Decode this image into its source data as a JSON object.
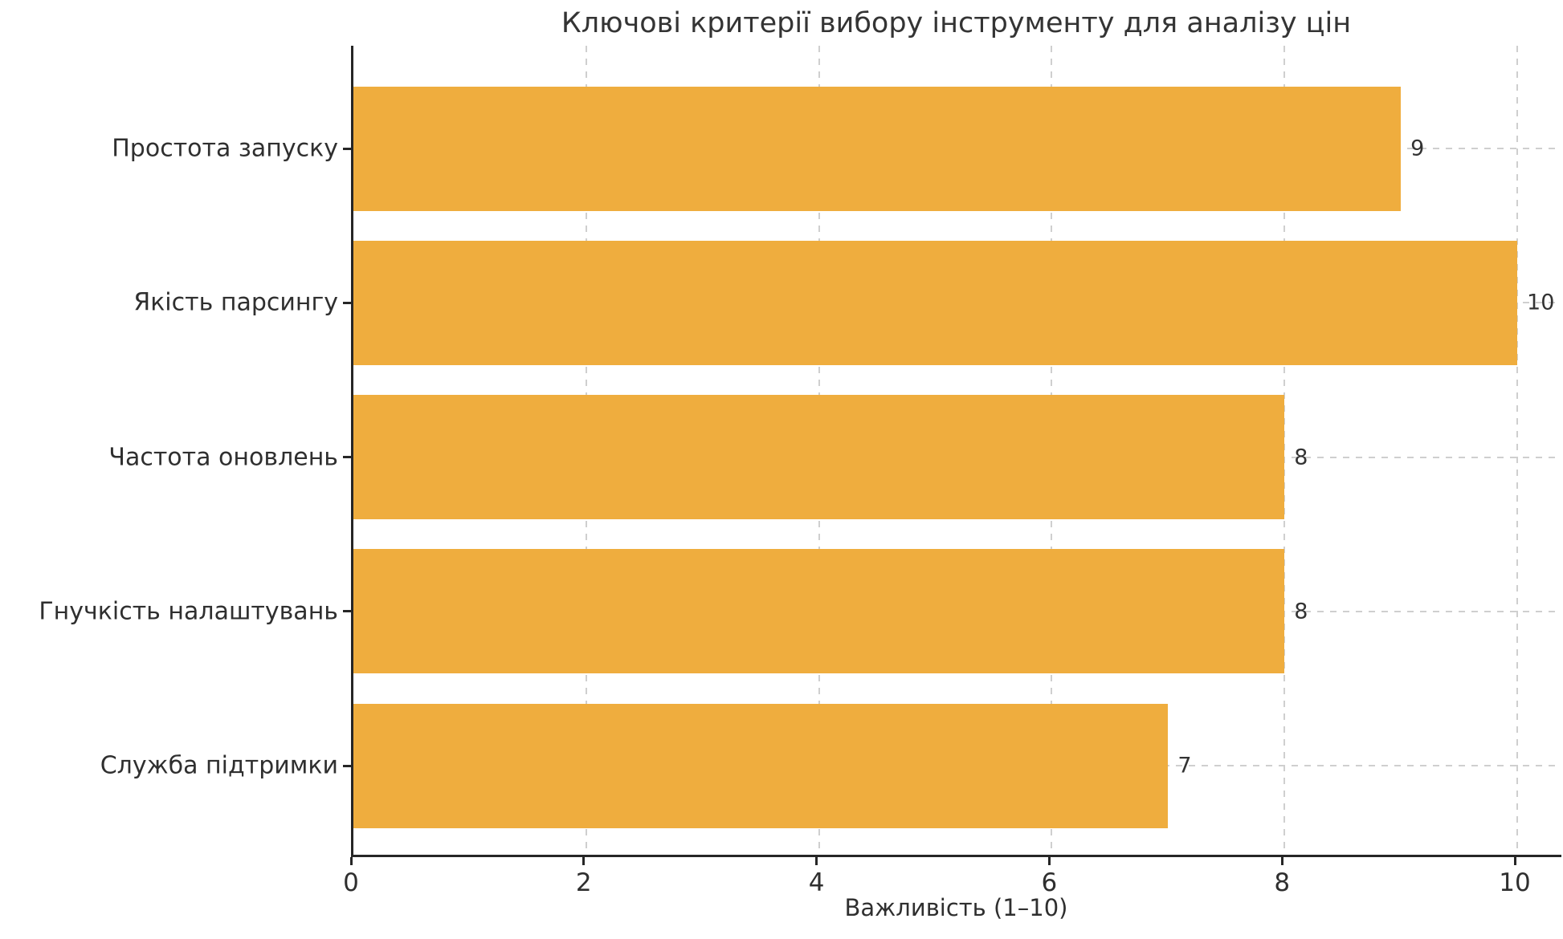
{
  "chart_data": {
    "type": "bar",
    "orientation": "horizontal",
    "title": "Ключові критерії вибору інструменту для аналізу цін",
    "xlabel": "Важливість (1–10)",
    "ylabel": "",
    "categories": [
      "Простота запуску",
      "Якість парсингу",
      "Частота оновлень",
      "Гнучкість налаштувань",
      "Служба підтримки"
    ],
    "values": [
      9,
      10,
      8,
      8,
      7
    ],
    "value_labels": [
      "9",
      "10",
      "8",
      "8",
      "7"
    ],
    "xticks": [
      0,
      2,
      4,
      6,
      8,
      10
    ],
    "xtick_labels": [
      "0",
      "2",
      "4",
      "6",
      "8",
      "10"
    ],
    "xlim": [
      0,
      10.4
    ],
    "grid": "dashed, vertical at xticks and horizontal at category centers, drawn under bars",
    "legend": "none",
    "bar_color": "#efad3e",
    "axis_color": "#262626",
    "grid_color": "#cfcfcf",
    "text_color": "#2f2f2f"
  }
}
